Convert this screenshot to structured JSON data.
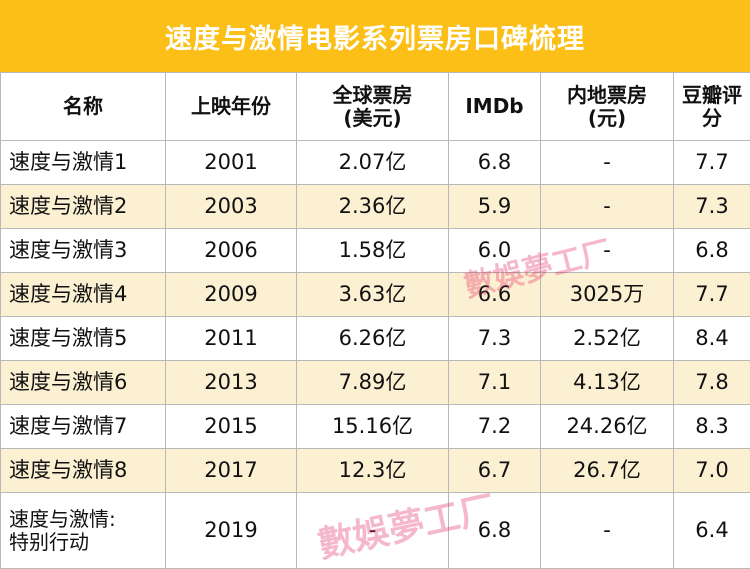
{
  "title": "速度与激情电影系列票房口碑梳理",
  "watermark": "數娛夢工厂",
  "columns": [
    "名称",
    "上映年份",
    "全球票房\n(美元)",
    "IMDb",
    "内地票房\n(元)",
    "豆瓣评\n分"
  ],
  "rows": [
    {
      "name": "速度与激情1",
      "year": "2001",
      "global": "2.07亿",
      "imdb": "6.8",
      "china": "-",
      "douban": "7.7"
    },
    {
      "name": "速度与激情2",
      "year": "2003",
      "global": "2.36亿",
      "imdb": "5.9",
      "china": "-",
      "douban": "7.3"
    },
    {
      "name": "速度与激情3",
      "year": "2006",
      "global": "1.58亿",
      "imdb": "6.0",
      "china": "-",
      "douban": "6.8"
    },
    {
      "name": "速度与激情4",
      "year": "2009",
      "global": "3.63亿",
      "imdb": "6.6",
      "china": "3025万",
      "douban": "7.7"
    },
    {
      "name": "速度与激情5",
      "year": "2011",
      "global": "6.26亿",
      "imdb": "7.3",
      "china": "2.52亿",
      "douban": "8.4"
    },
    {
      "name": "速度与激情6",
      "year": "2013",
      "global": "7.89亿",
      "imdb": "7.1",
      "china": "4.13亿",
      "douban": "7.8"
    },
    {
      "name": "速度与激情7",
      "year": "2015",
      "global": "15.16亿",
      "imdb": "7.2",
      "china": "24.26亿",
      "douban": "8.3"
    },
    {
      "name": "速度与激情8",
      "year": "2017",
      "global": "12.3亿",
      "imdb": "6.7",
      "china": "26.7亿",
      "douban": "7.0"
    },
    {
      "name": "速度与激情:\n特别行动",
      "year": "2019",
      "global": "-",
      "imdb": "6.8",
      "china": "-",
      "douban": "6.4"
    }
  ],
  "colors": {
    "title_bg": "#fcbf17",
    "title_text": "#ffffff",
    "row_alt": "#fcf0d2",
    "row_plain": "#ffffff",
    "border": "#b8b8b8",
    "watermark": "#e22860"
  }
}
